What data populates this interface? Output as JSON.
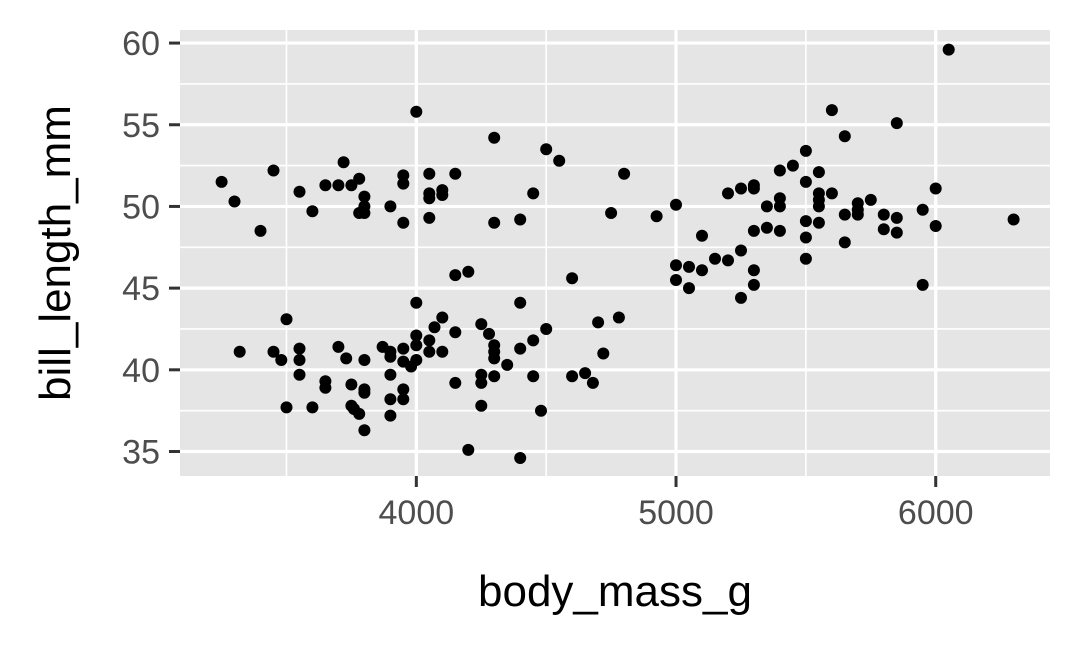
{
  "colors": {
    "panel_background": "#e5e5e5",
    "grid_major": "#ffffff",
    "point": "#000000",
    "tick_text": "#4d4d4d",
    "title_text": "#000000"
  },
  "chart_data": {
    "type": "scatter",
    "title": "",
    "xlabel": "body_mass_g",
    "ylabel": "bill_length_mm",
    "xlim": [
      3090,
      6440
    ],
    "ylim": [
      33.5,
      60.8
    ],
    "xticks": [
      4000,
      5000,
      6000
    ],
    "yticks": [
      35,
      40,
      45,
      50,
      55,
      60
    ],
    "xtick_labels": [
      "4000",
      "5000",
      "6000"
    ],
    "ytick_labels": [
      "35",
      "40",
      "45",
      "50",
      "55",
      "60"
    ],
    "grid": true,
    "legend": "none",
    "points": [
      [
        3250,
        51.5
      ],
      [
        3300,
        50.3
      ],
      [
        3320,
        41.1
      ],
      [
        3400,
        48.5
      ],
      [
        3450,
        52.2
      ],
      [
        3450,
        41.1
      ],
      [
        3480,
        40.6
      ],
      [
        3500,
        43.1
      ],
      [
        3500,
        37.7
      ],
      [
        3550,
        50.9
      ],
      [
        3550,
        41.3
      ],
      [
        3550,
        40.6
      ],
      [
        3550,
        39.7
      ],
      [
        3600,
        49.7
      ],
      [
        3600,
        37.7
      ],
      [
        3650,
        51.3
      ],
      [
        3650,
        39.3
      ],
      [
        3650,
        38.9
      ],
      [
        3700,
        51.3
      ],
      [
        3700,
        41.4
      ],
      [
        3720,
        52.7
      ],
      [
        3730,
        40.7
      ],
      [
        3750,
        51.3
      ],
      [
        3750,
        39.1
      ],
      [
        3750,
        37.8
      ],
      [
        3760,
        37.6
      ],
      [
        3780,
        51.7
      ],
      [
        3780,
        49.6
      ],
      [
        3780,
        37.3
      ],
      [
        3800,
        50.6
      ],
      [
        3800,
        50.0
      ],
      [
        3800,
        49.6
      ],
      [
        3800,
        40.6
      ],
      [
        3800,
        38.8
      ],
      [
        3800,
        38.6
      ],
      [
        3800,
        36.3
      ],
      [
        3870,
        41.4
      ],
      [
        3900,
        50.0
      ],
      [
        3900,
        41.1
      ],
      [
        3900,
        40.8
      ],
      [
        3900,
        39.7
      ],
      [
        3900,
        38.2
      ],
      [
        3900,
        37.2
      ],
      [
        3950,
        51.9
      ],
      [
        3950,
        51.4
      ],
      [
        3950,
        49.0
      ],
      [
        3950,
        41.3
      ],
      [
        3950,
        40.5
      ],
      [
        3950,
        38.8
      ],
      [
        3950,
        38.2
      ],
      [
        3980,
        40.2
      ],
      [
        4000,
        55.8
      ],
      [
        4000,
        44.1
      ],
      [
        4000,
        42.1
      ],
      [
        4000,
        41.5
      ],
      [
        4000,
        40.6
      ],
      [
        4050,
        52.0
      ],
      [
        4050,
        50.8
      ],
      [
        4050,
        50.5
      ],
      [
        4050,
        49.3
      ],
      [
        4050,
        41.8
      ],
      [
        4050,
        41.1
      ],
      [
        4070,
        42.6
      ],
      [
        4100,
        51.0
      ],
      [
        4100,
        50.7
      ],
      [
        4100,
        43.2
      ],
      [
        4100,
        41.1
      ],
      [
        4150,
        52.0
      ],
      [
        4150,
        45.8
      ],
      [
        4150,
        42.3
      ],
      [
        4150,
        39.2
      ],
      [
        4200,
        46.0
      ],
      [
        4200,
        35.1
      ],
      [
        4250,
        42.8
      ],
      [
        4250,
        39.7
      ],
      [
        4250,
        39.2
      ],
      [
        4250,
        37.8
      ],
      [
        4280,
        42.2
      ],
      [
        4300,
        54.2
      ],
      [
        4300,
        49.0
      ],
      [
        4300,
        41.5
      ],
      [
        4300,
        41.1
      ],
      [
        4300,
        40.7
      ],
      [
        4300,
        39.6
      ],
      [
        4350,
        40.3
      ],
      [
        4400,
        49.2
      ],
      [
        4400,
        44.1
      ],
      [
        4400,
        41.3
      ],
      [
        4400,
        34.6
      ],
      [
        4450,
        50.8
      ],
      [
        4450,
        41.8
      ],
      [
        4450,
        39.6
      ],
      [
        4480,
        37.5
      ],
      [
        4500,
        53.5
      ],
      [
        4500,
        42.5
      ],
      [
        4550,
        52.8
      ],
      [
        4600,
        45.6
      ],
      [
        4600,
        39.6
      ],
      [
        4650,
        39.8
      ],
      [
        4680,
        39.2
      ],
      [
        4700,
        42.9
      ],
      [
        4720,
        41.0
      ],
      [
        4750,
        49.6
      ],
      [
        4780,
        43.2
      ],
      [
        4800,
        52.0
      ],
      [
        4925,
        49.4
      ],
      [
        5000,
        50.1
      ],
      [
        5000,
        46.4
      ],
      [
        5000,
        45.5
      ],
      [
        5050,
        46.3
      ],
      [
        5050,
        45.0
      ],
      [
        5100,
        48.2
      ],
      [
        5100,
        46.1
      ],
      [
        5150,
        46.8
      ],
      [
        5200,
        50.8
      ],
      [
        5200,
        46.7
      ],
      [
        5250,
        51.1
      ],
      [
        5250,
        47.3
      ],
      [
        5250,
        44.4
      ],
      [
        5300,
        51.3
      ],
      [
        5300,
        51.1
      ],
      [
        5300,
        48.5
      ],
      [
        5300,
        46.1
      ],
      [
        5300,
        45.2
      ],
      [
        5350,
        50.0
      ],
      [
        5350,
        48.7
      ],
      [
        5400,
        52.2
      ],
      [
        5400,
        50.5
      ],
      [
        5400,
        50.0
      ],
      [
        5400,
        48.5
      ],
      [
        5450,
        52.5
      ],
      [
        5500,
        53.4
      ],
      [
        5500,
        51.5
      ],
      [
        5500,
        49.1
      ],
      [
        5500,
        48.1
      ],
      [
        5500,
        46.8
      ],
      [
        5550,
        52.1
      ],
      [
        5550,
        50.8
      ],
      [
        5550,
        50.4
      ],
      [
        5550,
        50.0
      ],
      [
        5550,
        49.0
      ],
      [
        5600,
        55.9
      ],
      [
        5600,
        50.8
      ],
      [
        5650,
        54.3
      ],
      [
        5650,
        49.5
      ],
      [
        5650,
        47.8
      ],
      [
        5700,
        50.2
      ],
      [
        5700,
        49.8
      ],
      [
        5700,
        49.5
      ],
      [
        5750,
        50.4
      ],
      [
        5800,
        49.5
      ],
      [
        5800,
        48.6
      ],
      [
        5850,
        55.1
      ],
      [
        5850,
        49.3
      ],
      [
        5850,
        48.4
      ],
      [
        5950,
        49.8
      ],
      [
        5950,
        45.2
      ],
      [
        6000,
        51.1
      ],
      [
        6000,
        48.8
      ],
      [
        6050,
        59.6
      ],
      [
        6300,
        49.2
      ]
    ]
  }
}
